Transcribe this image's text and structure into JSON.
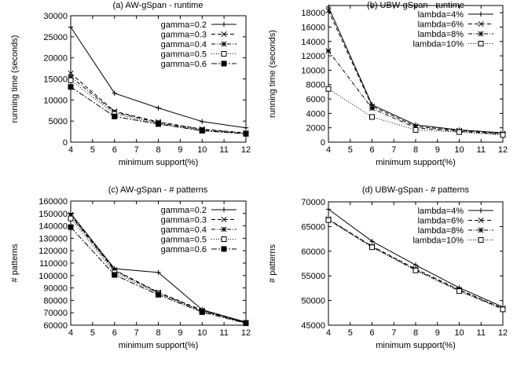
{
  "figure": {
    "background": "#ffffff",
    "line_color": "#000000"
  },
  "chart_data": [
    {
      "type": "line",
      "title": "(a) AW-gSpan - runtime",
      "xlabel": "minimum support(%)",
      "ylabel": "running time (seconds)",
      "xlim": [
        4,
        12
      ],
      "ylim": [
        0,
        30000
      ],
      "xticks": [
        4,
        5,
        6,
        7,
        8,
        9,
        10,
        11,
        12
      ],
      "yticks": [
        0,
        5000,
        10000,
        15000,
        20000,
        25000,
        30000
      ],
      "legend_position": "top-right",
      "grid": false,
      "x": [
        4,
        6,
        8,
        10,
        12
      ],
      "series": [
        {
          "name": "gamma=0.2",
          "values": [
            27300,
            11600,
            8100,
            4900,
            3400
          ],
          "dash": "solid",
          "marker": "plus"
        },
        {
          "name": "gamma=0.3",
          "values": [
            16300,
            7300,
            4800,
            3100,
            2200
          ],
          "dash": "dashed",
          "marker": "cross"
        },
        {
          "name": "gamma=0.4",
          "values": [
            15500,
            7100,
            4600,
            3000,
            2100
          ],
          "dash": "dotdash",
          "marker": "star"
        },
        {
          "name": "gamma=0.5",
          "values": [
            14700,
            6700,
            4400,
            2800,
            2000
          ],
          "dash": "dotted",
          "marker": "square-open"
        },
        {
          "name": "gamma=0.6",
          "values": [
            13100,
            6100,
            4300,
            2700,
            2000
          ],
          "dash": "longdash",
          "marker": "square-filled"
        }
      ]
    },
    {
      "type": "line",
      "title": "(b) UBW-gSpan - runtime",
      "xlabel": "minimum support(%)",
      "ylabel": "running time (seconds)",
      "xlim": [
        4,
        12
      ],
      "ylim": [
        0,
        19000
      ],
      "xticks": [
        4,
        5,
        6,
        7,
        8,
        9,
        10,
        11,
        12
      ],
      "yticks": [
        0,
        2000,
        4000,
        6000,
        8000,
        10000,
        12000,
        14000,
        16000,
        18000
      ],
      "legend_position": "top-right",
      "grid": false,
      "x": [
        4,
        6,
        8,
        10,
        12
      ],
      "series": [
        {
          "name": "lambda=4%",
          "values": [
            18800,
            5200,
            2400,
            1700,
            1300
          ],
          "dash": "solid",
          "marker": "plus"
        },
        {
          "name": "lambda=6%",
          "values": [
            18300,
            5000,
            2200,
            1600,
            1200
          ],
          "dash": "dashed",
          "marker": "cross"
        },
        {
          "name": "lambda=8%",
          "values": [
            12700,
            4700,
            2000,
            1500,
            1100
          ],
          "dash": "dotdash",
          "marker": "star"
        },
        {
          "name": "lambda=10%",
          "values": [
            7400,
            3500,
            1700,
            1400,
            1000
          ],
          "dash": "dotted",
          "marker": "square-open"
        }
      ]
    },
    {
      "type": "line",
      "title": "(c) AW-gSpan - # patterns",
      "xlabel": "minimum support(%)",
      "ylabel": "# patterns",
      "xlim": [
        4,
        12
      ],
      "ylim": [
        60000,
        160000
      ],
      "xticks": [
        4,
        5,
        6,
        7,
        8,
        9,
        10,
        11,
        12
      ],
      "yticks": [
        60000,
        70000,
        80000,
        90000,
        100000,
        110000,
        120000,
        130000,
        140000,
        150000,
        160000
      ],
      "legend_position": "top-right",
      "grid": false,
      "x": [
        4,
        6,
        8,
        10,
        12
      ],
      "series": [
        {
          "name": "gamma=0.2",
          "values": [
            150000,
            105500,
            102500,
            72500,
            62500
          ],
          "dash": "solid",
          "marker": "plus"
        },
        {
          "name": "gamma=0.3",
          "values": [
            149000,
            104500,
            86500,
            72000,
            62000
          ],
          "dash": "dashed",
          "marker": "cross"
        },
        {
          "name": "gamma=0.4",
          "values": [
            148000,
            104000,
            86000,
            71500,
            62000
          ],
          "dash": "dotdash",
          "marker": "star"
        },
        {
          "name": "gamma=0.5",
          "values": [
            146000,
            102500,
            85500,
            71000,
            61800
          ],
          "dash": "dotted",
          "marker": "square-open"
        },
        {
          "name": "gamma=0.6",
          "values": [
            139000,
            100500,
            84500,
            70500,
            61500
          ],
          "dash": "longdash",
          "marker": "square-filled"
        }
      ]
    },
    {
      "type": "line",
      "title": "(d) UBW-gSpan - # patterns",
      "xlabel": "minimum support(%)",
      "ylabel": "# patterns",
      "xlim": [
        4,
        12
      ],
      "ylim": [
        45000,
        70000
      ],
      "xticks": [
        4,
        5,
        6,
        7,
        8,
        9,
        10,
        11,
        12
      ],
      "yticks": [
        45000,
        50000,
        55000,
        60000,
        65000,
        70000
      ],
      "legend_position": "top-right",
      "grid": false,
      "x": [
        4,
        6,
        8,
        10,
        12
      ],
      "series": [
        {
          "name": "lambda=4%",
          "values": [
            68500,
            62000,
            57200,
            52600,
            48700
          ],
          "dash": "solid",
          "marker": "plus"
        },
        {
          "name": "lambda=6%",
          "values": [
            66500,
            61000,
            56400,
            52200,
            48400
          ],
          "dash": "dashed",
          "marker": "cross"
        },
        {
          "name": "lambda=8%",
          "values": [
            66400,
            60900,
            56200,
            52000,
            48300
          ],
          "dash": "dotdash",
          "marker": "star"
        },
        {
          "name": "lambda=10%",
          "values": [
            66300,
            60800,
            56100,
            51900,
            48200
          ],
          "dash": "dotted",
          "marker": "square-open"
        }
      ]
    }
  ]
}
